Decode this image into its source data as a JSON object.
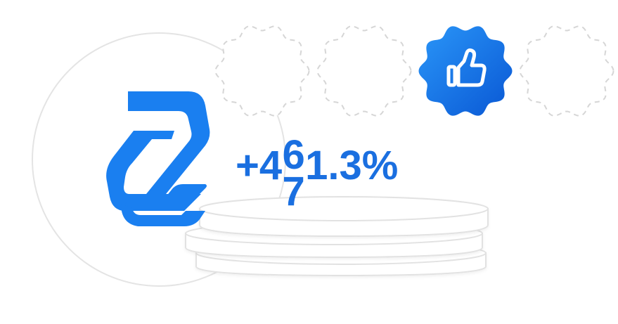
{
  "stat": {
    "prefix": "+4",
    "rolling_digit_current": "6",
    "rolling_digit_next": "7",
    "suffix": "1.3%"
  },
  "badges": [
    {
      "state": "empty"
    },
    {
      "state": "empty"
    },
    {
      "state": "active",
      "icon": "thumbs-up-icon"
    },
    {
      "state": "empty"
    }
  ],
  "colors": {
    "brand_blue": "#1a7ff0",
    "badge_blue_light": "#1f8cf5",
    "badge_blue_dark": "#0a5bd6",
    "outline_gray": "#e3e3e3",
    "dash_gray": "#d4d4d4"
  }
}
